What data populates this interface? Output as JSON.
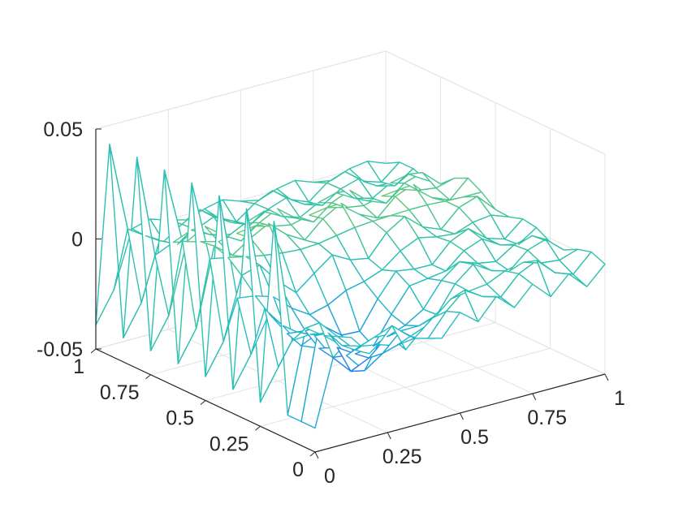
{
  "chart_data": {
    "type": "surface-mesh",
    "title": "",
    "xlabel": "",
    "ylabel": "",
    "zlabel": "",
    "xlim": [
      0,
      1
    ],
    "ylim": [
      0,
      1
    ],
    "zlim": [
      -0.05,
      0.05
    ],
    "grid": true,
    "colormap": "parula",
    "colormap_colors": [
      "#3e26a8",
      "#2f69f0",
      "#18a0e0",
      "#27bcc4",
      "#2fc2ab",
      "#75c96d",
      "#cfbf3a",
      "#fac535",
      "#f9fb0e"
    ],
    "x_ticks": [
      {
        "value": 0,
        "label": "0"
      },
      {
        "value": 0.25,
        "label": "0.25"
      },
      {
        "value": 0.5,
        "label": "0.5"
      },
      {
        "value": 0.75,
        "label": "0.75"
      },
      {
        "value": 1,
        "label": "1"
      }
    ],
    "y_ticks": [
      {
        "value": 0,
        "label": "0"
      },
      {
        "value": 0.25,
        "label": "0.25"
      },
      {
        "value": 0.5,
        "label": "0.5"
      },
      {
        "value": 0.75,
        "label": "0.75"
      },
      {
        "value": 1,
        "label": "1"
      }
    ],
    "z_ticks": [
      {
        "value": -0.05,
        "label": "-0.05"
      },
      {
        "value": 0,
        "label": "0"
      },
      {
        "value": 0.05,
        "label": "0.05"
      }
    ],
    "mesh_grid_size": 16,
    "spike_amplitude": 0.046,
    "ridge_amplitude": 0.012,
    "trough_amplitude": 0.034
  }
}
